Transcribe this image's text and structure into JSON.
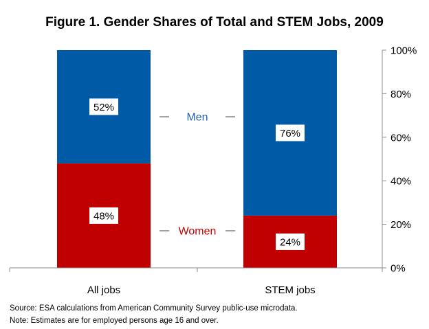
{
  "chart_data": {
    "type": "bar",
    "stacked": true,
    "title": "Figure 1. Gender Shares of Total and STEM Jobs, 2009",
    "categories": [
      "All jobs",
      "STEM jobs"
    ],
    "series": [
      {
        "name": "Women",
        "values": [
          48,
          24
        ],
        "labels": [
          "48%",
          "24%"
        ],
        "color": "#c00000"
      },
      {
        "name": "Men",
        "values": [
          52,
          76
        ],
        "labels": [
          "52%",
          "76%"
        ],
        "color": "#005aa6"
      }
    ],
    "ylim": [
      0,
      100
    ],
    "yticks": [
      0,
      20,
      40,
      60,
      80,
      100
    ],
    "ytick_labels": [
      "0%",
      "20%",
      "40%",
      "60%",
      "80%",
      "100%"
    ],
    "y_axis_side": "right",
    "legend_placement": "inline between bars",
    "legend_colors": {
      "Men": "#1f5ea8",
      "Women": "#c00000"
    },
    "grid": false
  },
  "notes": {
    "source": "Source:  ESA calculations from American Community Survey public-use microdata.",
    "note": "Note: Estimates are for employed persons age 16 and over."
  }
}
